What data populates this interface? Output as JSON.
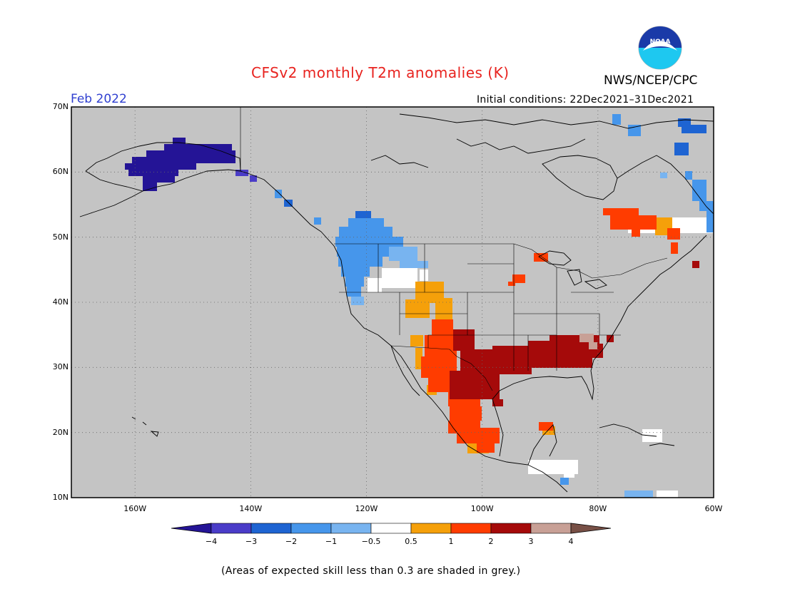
{
  "title": "CFSv2 monthly T2m anomalies (K)",
  "agency": "NWS/NCEP/CPC",
  "logo_text": "NOAA",
  "forecast_month": "Feb 2022",
  "initial_conditions": "Initial conditions: 22Dec2021–31Dec2021",
  "footnote": "(Areas of expected skill less than 0.3 are shaded in grey.)",
  "map": {
    "lon_range": [
      -171,
      -60
    ],
    "lat_range": [
      10,
      70
    ],
    "background_color": "#c4c4c4",
    "grid": "dotted",
    "lat_labels": [
      "70N",
      "60N",
      "50N",
      "40N",
      "30N",
      "20N",
      "10N"
    ],
    "lon_labels": [
      "160W",
      "140W",
      "120W",
      "100W",
      "80W",
      "60W"
    ]
  },
  "colorbar": {
    "labels": [
      "−4",
      "−3",
      "−2",
      "−1",
      "−0.5",
      "0.5",
      "1",
      "2",
      "3",
      "4"
    ],
    "colors": [
      "#241496",
      "#4a3cc8",
      "#1e64d2",
      "#4696eb",
      "#78b4f0",
      "#ffffff",
      "#f5a00a",
      "#ff3c00",
      "#a50a0a",
      "#c8a096",
      "#785046"
    ]
  }
}
